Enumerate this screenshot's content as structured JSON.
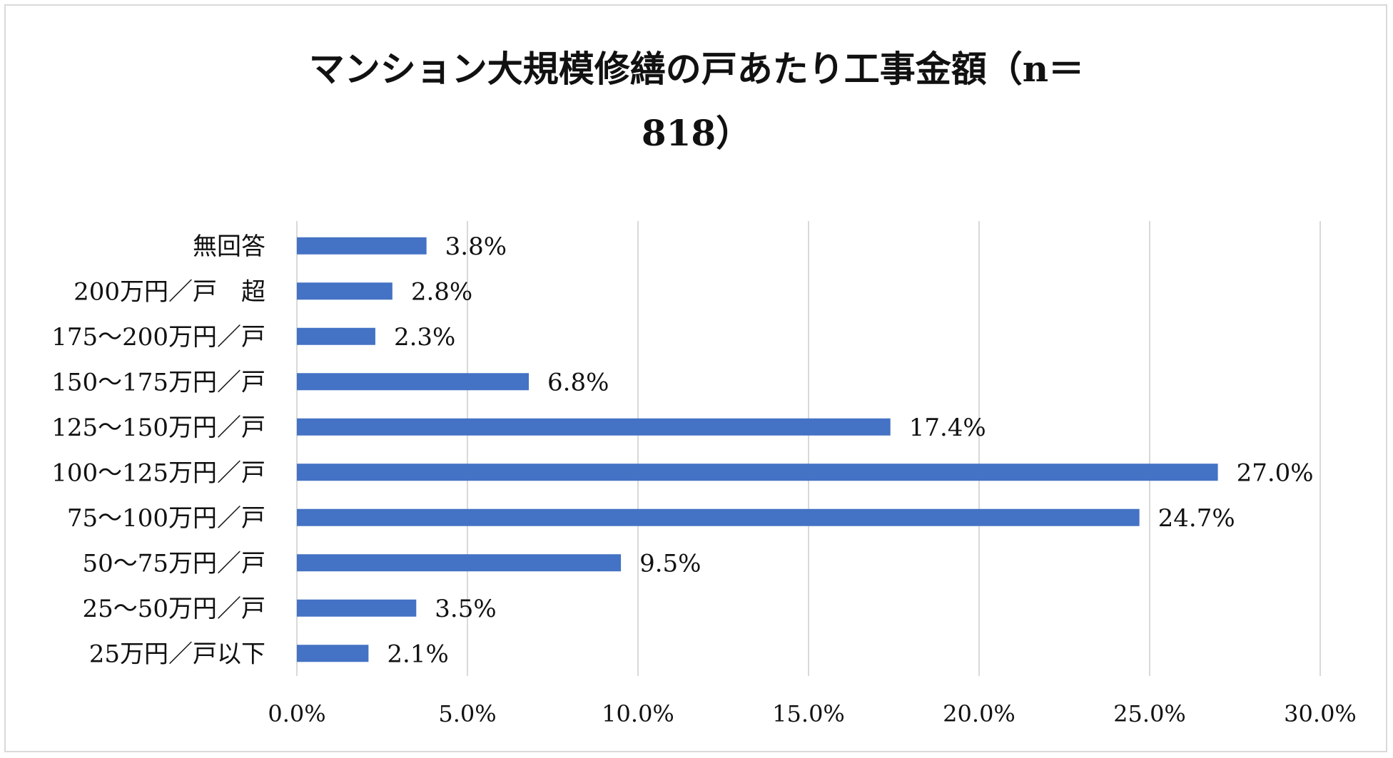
{
  "chart_data": {
    "type": "bar",
    "orientation": "horizontal",
    "title_lines": [
      "マンション大規模修繕の戸あたり工事金額（n＝",
      "818）"
    ],
    "categories": [
      "無回答",
      "200万円／戸　超",
      "175～200万円／戸",
      "150～175万円／戸",
      "125～150万円／戸",
      "100～125万円／戸",
      "75～100万円／戸",
      "50～75万円／戸",
      "25～50万円／戸",
      "25万円／戸以下"
    ],
    "values": [
      3.8,
      2.8,
      2.3,
      6.8,
      17.4,
      27.0,
      24.7,
      9.5,
      3.5,
      2.1
    ],
    "data_labels": [
      "3.8%",
      "2.8%",
      "2.3%",
      "6.8%",
      "17.4%",
      "27.0%",
      "24.7%",
      "9.5%",
      "3.5%",
      "2.1%"
    ],
    "x_ticks": [
      0,
      5,
      10,
      15,
      20,
      25,
      30
    ],
    "x_tick_labels": [
      "0.0%",
      "5.0%",
      "10.0%",
      "15.0%",
      "20.0%",
      "25.0%",
      "30.0%"
    ],
    "xlim": [
      0,
      30
    ],
    "grid": "vertical",
    "legend": "none",
    "bar_color": "#4472c4",
    "grid_color": "#d9d9d9"
  }
}
